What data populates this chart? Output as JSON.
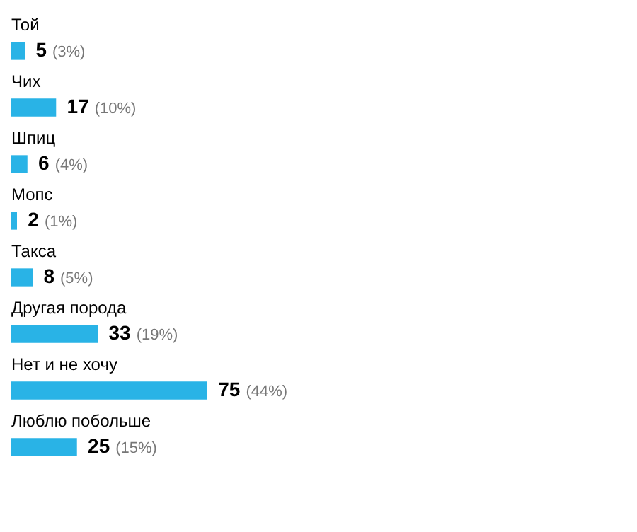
{
  "chart_data": {
    "type": "bar",
    "orientation": "horizontal",
    "categories": [
      "Той",
      "Чих",
      "Шпиц",
      "Мопс",
      "Такса",
      "Другая порода",
      "Нет и не хочу",
      "Люблю побольше"
    ],
    "values": [
      5,
      17,
      6,
      2,
      8,
      33,
      75,
      25
    ],
    "color": "#29b3e6",
    "data_labels": true,
    "annotations": [
      {
        "text": "(3%)",
        "x": 5,
        "y": "Той"
      },
      {
        "text": "(10%)",
        "x": 17,
        "y": "Чих"
      },
      {
        "text": "(4%)",
        "x": 6,
        "y": "Шпиц"
      },
      {
        "text": "(1%)",
        "x": 2,
        "y": "Мопс"
      },
      {
        "text": "(5%)",
        "x": 8,
        "y": "Такса"
      },
      {
        "text": "(19%)",
        "x": 33,
        "y": "Другая порода"
      },
      {
        "text": "(44%)",
        "x": 75,
        "y": "Нет и не хочу"
      },
      {
        "text": "(15%)",
        "x": 25,
        "y": "Люблю побольше"
      }
    ]
  }
}
